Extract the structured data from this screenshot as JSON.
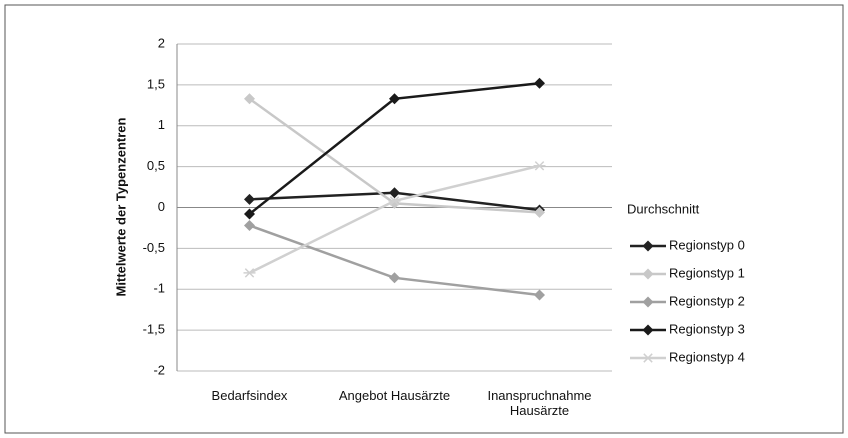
{
  "chart_data": {
    "type": "line",
    "ylabel": "Mittelwerte der Typenzentren",
    "categories": [
      "Bedarfsindex",
      "Angebot Hausärzte",
      "Inanspruchnahme Hausärzte"
    ],
    "series": [
      {
        "name": "Regionstyp 0",
        "color": "#222222",
        "marker": "diamond",
        "values": [
          0.1,
          0.18,
          -0.03
        ]
      },
      {
        "name": "Regionstyp 1",
        "color": "#c8c8c8",
        "marker": "diamond",
        "values": [
          1.33,
          0.05,
          -0.06
        ]
      },
      {
        "name": "Regionstyp 2",
        "color": "#a0a0a0",
        "marker": "diamond",
        "values": [
          -0.22,
          -0.86,
          -1.07
        ]
      },
      {
        "name": "Regionstyp 3",
        "color": "#1a1a1a",
        "marker": "diamond",
        "values": [
          -0.08,
          1.33,
          1.52
        ]
      },
      {
        "name": "Regionstyp 4",
        "color": "#d0d0d0",
        "marker": "star",
        "values": [
          -0.8,
          0.08,
          0.51
        ]
      }
    ],
    "legend_title": "Durchschnitt",
    "ylim": [
      -2,
      2
    ],
    "yticks": [
      -2,
      {
        "value": -1.5,
        "label": "-1,5"
      },
      -1,
      {
        "value": -0.5,
        "label": "-0,5"
      },
      0,
      {
        "value": 0.5,
        "label": "0,5"
      },
      1,
      {
        "value": 1.5,
        "label": "1,5"
      },
      2
    ],
    "grid": true,
    "legend": "right"
  }
}
